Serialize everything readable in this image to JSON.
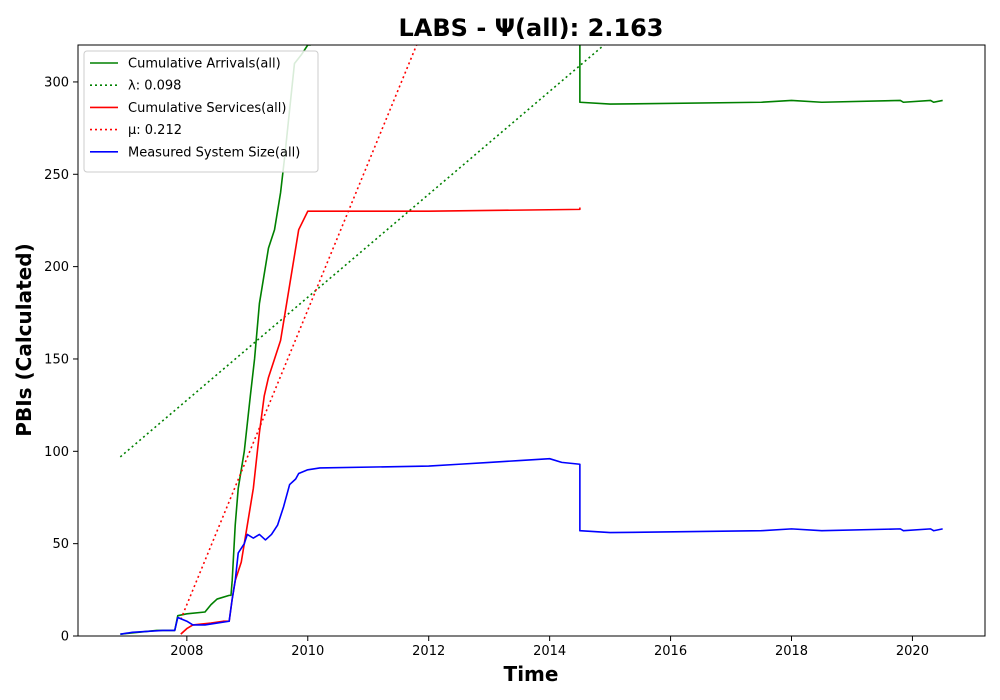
{
  "chart_data": {
    "type": "line",
    "title": "LABS -  Ψ(all): 2.163",
    "xlabel": "Time",
    "ylabel": "PBIs (Calculated)",
    "xlim": [
      2006.2,
      2021.2
    ],
    "ylim": [
      0,
      320
    ],
    "xticks": [
      2008,
      2010,
      2012,
      2014,
      2016,
      2018,
      2020
    ],
    "yticks": [
      0,
      50,
      100,
      150,
      200,
      250,
      300
    ],
    "grid": false,
    "legend": "top-left",
    "series": [
      {
        "name": "Cumulative Arrivals(all)",
        "color": "#008000",
        "style": "solid",
        "points": [
          [
            2006.9,
            1
          ],
          [
            2007.5,
            3
          ],
          [
            2007.8,
            3
          ],
          [
            2007.85,
            11
          ],
          [
            2008.0,
            12
          ],
          [
            2008.3,
            13
          ],
          [
            2008.4,
            17
          ],
          [
            2008.5,
            20
          ],
          [
            2008.7,
            22
          ],
          [
            2008.73,
            22
          ],
          [
            2008.75,
            30
          ],
          [
            2008.8,
            60
          ],
          [
            2008.85,
            80
          ],
          [
            2008.95,
            100
          ],
          [
            2009.05,
            130
          ],
          [
            2009.12,
            150
          ],
          [
            2009.2,
            180
          ],
          [
            2009.3,
            200
          ],
          [
            2009.35,
            210
          ],
          [
            2009.45,
            220
          ],
          [
            2009.55,
            240
          ],
          [
            2009.62,
            260
          ],
          [
            2009.7,
            285
          ],
          [
            2009.78,
            310
          ],
          [
            2009.9,
            315
          ],
          [
            2010.0,
            320
          ],
          [
            2010.05,
            320
          ]
        ]
      },
      {
        "name": "Cumulative Arrivals(all)",
        "color": "#008000",
        "style": "solid",
        "points": [
          [
            2014.5,
            320
          ],
          [
            2014.5,
            289
          ],
          [
            2015.0,
            288
          ],
          [
            2017.5,
            289
          ],
          [
            2018.0,
            290
          ],
          [
            2018.5,
            289
          ],
          [
            2019.8,
            290
          ],
          [
            2019.85,
            289
          ],
          [
            2020.3,
            290
          ],
          [
            2020.35,
            289
          ],
          [
            2020.5,
            290
          ]
        ]
      },
      {
        "name": "λ: 0.098",
        "color": "#008000",
        "style": "dotted",
        "points": [
          [
            2006.9,
            97
          ],
          [
            2014.9,
            320
          ]
        ]
      },
      {
        "name": "Cumulative Services(all)",
        "color": "#ff0000",
        "style": "solid",
        "points": [
          [
            2007.9,
            1
          ],
          [
            2008.0,
            4
          ],
          [
            2008.1,
            6
          ],
          [
            2008.4,
            7
          ],
          [
            2008.6,
            8
          ],
          [
            2008.7,
            8
          ],
          [
            2008.75,
            20
          ],
          [
            2008.8,
            30
          ],
          [
            2008.9,
            40
          ],
          [
            2008.95,
            50
          ],
          [
            2009.0,
            60
          ],
          [
            2009.1,
            80
          ],
          [
            2009.2,
            110
          ],
          [
            2009.28,
            130
          ],
          [
            2009.35,
            140
          ],
          [
            2009.45,
            150
          ],
          [
            2009.55,
            160
          ],
          [
            2009.6,
            170
          ],
          [
            2009.7,
            190
          ],
          [
            2009.8,
            210
          ],
          [
            2009.85,
            220
          ],
          [
            2010.0,
            230
          ],
          [
            2012.0,
            230
          ],
          [
            2014.5,
            231
          ],
          [
            2014.5,
            232
          ]
        ]
      },
      {
        "name": "μ: 0.212",
        "color": "#ff0000",
        "style": "dotted",
        "points": [
          [
            2007.9,
            9
          ],
          [
            2011.8,
            320
          ]
        ]
      },
      {
        "name": "Measured System Size(all)",
        "color": "#0000ff",
        "style": "solid",
        "points": [
          [
            2006.9,
            1
          ],
          [
            2007.1,
            2
          ],
          [
            2007.6,
            3
          ],
          [
            2007.8,
            3
          ],
          [
            2007.85,
            10
          ],
          [
            2008.0,
            8
          ],
          [
            2008.1,
            6
          ],
          [
            2008.3,
            6
          ],
          [
            2008.5,
            7
          ],
          [
            2008.7,
            8
          ],
          [
            2008.75,
            20
          ],
          [
            2008.8,
            30
          ],
          [
            2008.85,
            45
          ],
          [
            2008.95,
            50
          ],
          [
            2009.0,
            55
          ],
          [
            2009.1,
            53
          ],
          [
            2009.2,
            55
          ],
          [
            2009.3,
            52
          ],
          [
            2009.4,
            55
          ],
          [
            2009.5,
            60
          ],
          [
            2009.6,
            70
          ],
          [
            2009.7,
            82
          ],
          [
            2009.8,
            85
          ],
          [
            2009.85,
            88
          ],
          [
            2010.0,
            90
          ],
          [
            2010.2,
            91
          ],
          [
            2012.0,
            92
          ],
          [
            2012.5,
            93
          ],
          [
            2013.0,
            94
          ],
          [
            2013.5,
            95
          ],
          [
            2014.0,
            96
          ],
          [
            2014.2,
            94
          ],
          [
            2014.5,
            93
          ],
          [
            2014.5,
            57
          ],
          [
            2015.0,
            56
          ],
          [
            2017.5,
            57
          ],
          [
            2018.0,
            58
          ],
          [
            2018.5,
            57
          ],
          [
            2019.8,
            58
          ],
          [
            2019.85,
            57
          ],
          [
            2020.3,
            58
          ],
          [
            2020.35,
            57
          ],
          [
            2020.5,
            58
          ]
        ]
      }
    ]
  }
}
